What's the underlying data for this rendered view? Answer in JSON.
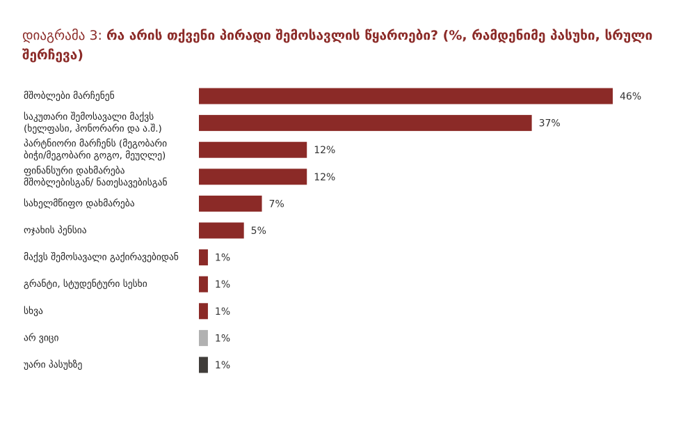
{
  "title": {
    "prefix": "დიაგრამა 3: ",
    "main": "რა არის თქვენი პირადი შემოსავლის წყაროები? (%, რამდენიმე პასუხი, სრული შერჩევა)"
  },
  "colors": {
    "primary": "#8b2a27",
    "dont_know": "#b1b1b1",
    "refused": "#403d3a"
  },
  "chart_data": {
    "type": "bar",
    "orientation": "horizontal",
    "categories": [
      [
        "მშობლები მარჩენენ"
      ],
      [
        "საკუთარი შემოსავალი მაქვს",
        "(ხელფასი, ჰონორარი და ა.შ.)"
      ],
      [
        "პარტნიორი მარჩენს (მეგობარი",
        "ბიჭი/მეგობარი გოგო, მეუღლე)"
      ],
      [
        "ფინანსური დახმარება",
        "მშობლებისგან/ ნათესავებისგან"
      ],
      [
        "სახელმწიფო დახმარება"
      ],
      [
        "ოჯახის პენსია"
      ],
      [
        "მაქვს შემოსავალი გაქირავებიდან"
      ],
      [
        "გრანტი, სტუდენტური სესხი"
      ],
      [
        "სხვა"
      ],
      [
        "არ ვიცი"
      ],
      [
        "უარი პასუხზე"
      ]
    ],
    "values": [
      46,
      37,
      12,
      12,
      7,
      5,
      1,
      1,
      1,
      1,
      1
    ],
    "value_labels": [
      "46%",
      "37%",
      "12%",
      "12%",
      "7%",
      "5%",
      "1%",
      "1%",
      "1%",
      "1%",
      "1%"
    ],
    "bar_colors": [
      "#8b2a27",
      "#8b2a27",
      "#8b2a27",
      "#8b2a27",
      "#8b2a27",
      "#8b2a27",
      "#8b2a27",
      "#8b2a27",
      "#8b2a27",
      "#b1b1b1",
      "#403d3a"
    ],
    "xlim": [
      0,
      46
    ],
    "grid": false,
    "legend": "none"
  }
}
